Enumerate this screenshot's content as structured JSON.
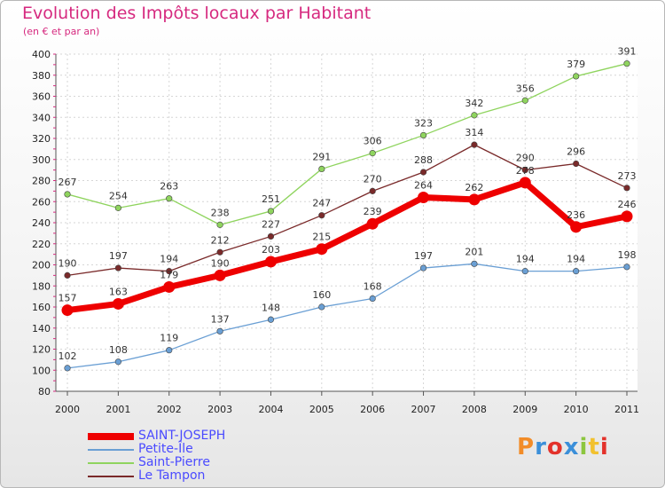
{
  "header": {
    "title": "Evolution des Impôts locaux par Habitant",
    "subtitle": "(en € et par an)"
  },
  "logo": {
    "text": "Proxiti",
    "colors": [
      "#f28c28",
      "#3b8fd9",
      "#e3322b",
      "#3b8fd9",
      "#8cc63f",
      "#f2c12e",
      "#e3322b"
    ]
  },
  "chart_data": {
    "type": "line",
    "title": "Evolution des Impôts locaux par Habitant",
    "subtitle": "(en € et par an)",
    "categories": [
      "2000",
      "2001",
      "2002",
      "2003",
      "2004",
      "2005",
      "2006",
      "2007",
      "2008",
      "2009",
      "2010",
      "2011"
    ],
    "ylim": [
      80,
      400
    ],
    "yticks": [
      80,
      100,
      120,
      140,
      160,
      180,
      200,
      220,
      240,
      260,
      280,
      300,
      320,
      340,
      360,
      380,
      400
    ],
    "grid": true,
    "legend_position": "bottom-left",
    "series": [
      {
        "name": "SAINT-JOSEPH",
        "color": "#ee0000",
        "emphasis": true,
        "values": [
          157,
          163,
          179,
          190,
          203,
          215,
          239,
          264,
          262,
          278,
          236,
          246
        ]
      },
      {
        "name": "Petite-Île",
        "color": "#6a9fd4",
        "emphasis": false,
        "values": [
          102,
          108,
          119,
          137,
          148,
          160,
          168,
          197,
          201,
          194,
          194,
          198
        ]
      },
      {
        "name": "Saint-Pierre",
        "color": "#8fd45e",
        "emphasis": false,
        "values": [
          267,
          254,
          263,
          238,
          251,
          291,
          306,
          323,
          342,
          356,
          379,
          391
        ]
      },
      {
        "name": "Le Tampon",
        "color": "#7a2a2a",
        "emphasis": false,
        "values": [
          190,
          197,
          194,
          212,
          227,
          247,
          270,
          288,
          314,
          290,
          296,
          273
        ]
      }
    ]
  }
}
